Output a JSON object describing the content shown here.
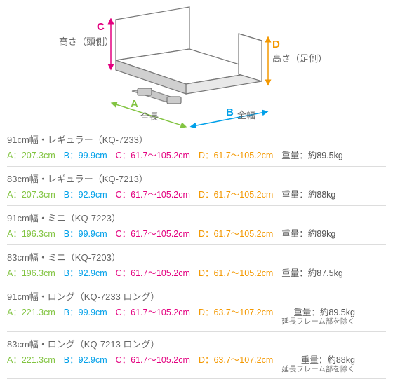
{
  "diagram": {
    "labels": {
      "a": "A",
      "b": "B",
      "c": "C",
      "d": "D"
    },
    "desc": {
      "a": "全長",
      "b": "全幅",
      "c": "高さ（頭側）",
      "d": "高さ（足側）"
    },
    "colors": {
      "a": "#82c441",
      "b": "#00a0e9",
      "c": "#e3007f",
      "d": "#f39800"
    },
    "stroke": "#777777",
    "fill_light": "#ffffff",
    "fill_shadow": "#dcdcdc",
    "arrow_width": "1.5"
  },
  "rows": [
    {
      "title": "91cm幅・レギュラー（KQ-7233）",
      "a": "207.3cm",
      "b": "99.9cm",
      "c": "61.7～105.2cm",
      "d": "61.7～105.2cm",
      "weight": "約89.5kg",
      "note": ""
    },
    {
      "title": "83cm幅・レギュラー（KQ-7213）",
      "a": "207.3cm",
      "b": "92.9cm",
      "c": "61.7～105.2cm",
      "d": "61.7～105.2cm",
      "weight": "約88kg",
      "note": ""
    },
    {
      "title": "91cm幅・ミニ（KQ-7223）",
      "a": "196.3cm",
      "b": "99.9cm",
      "c": "61.7～105.2cm",
      "d": "61.7～105.2cm",
      "weight": "約89kg",
      "note": ""
    },
    {
      "title": "83cm幅・ミニ（KQ-7203）",
      "a": "196.3cm",
      "b": "92.9cm",
      "c": "61.7～105.2cm",
      "d": "61.7～105.2cm",
      "weight": "約87.5kg",
      "note": ""
    },
    {
      "title": "91cm幅・ロング（KQ-7233 ロング）",
      "a": "221.3cm",
      "b": "99.9cm",
      "c": "61.7～105.2cm",
      "d": "63.7～107.2cm",
      "weight": "約89.5kg",
      "note": "延長フレーム部を除く"
    },
    {
      "title": "83cm幅・ロング（KQ-7213 ロング）",
      "a": "221.3cm",
      "b": "92.9cm",
      "c": "61.7～105.2cm",
      "d": "63.7～107.2cm",
      "weight": "約88kg",
      "note": "延長フレーム部を除く"
    }
  ],
  "weight_label": "重量："
}
